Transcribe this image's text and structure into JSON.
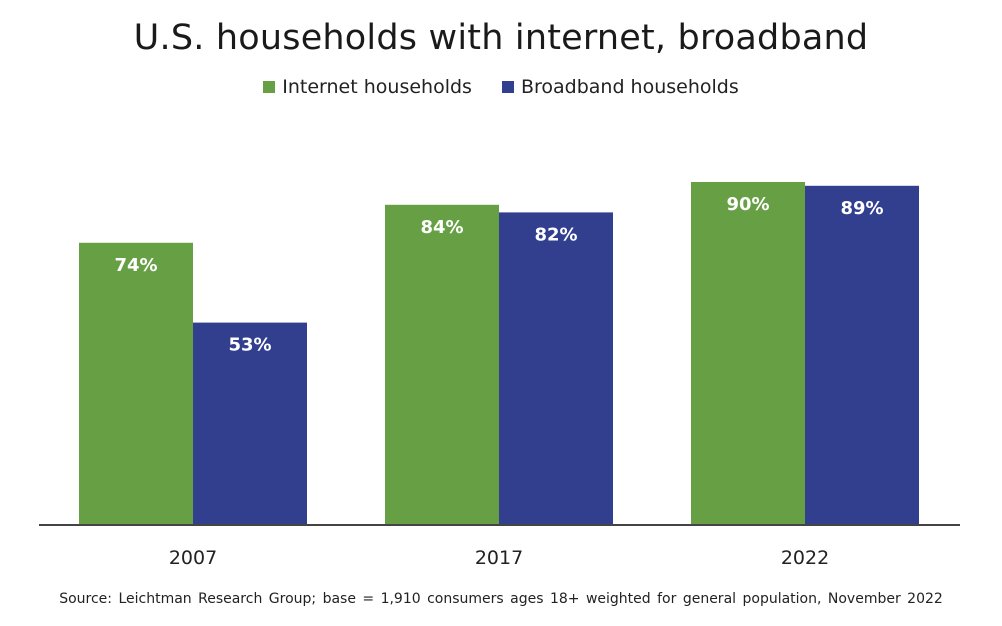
{
  "chart_data": {
    "type": "bar",
    "title": "U.S. households with internet, broadband",
    "categories": [
      "2007",
      "2017",
      "2022"
    ],
    "series": [
      {
        "name": "Internet households",
        "color": "#67a044",
        "values": [
          74,
          84,
          90
        ],
        "labels": [
          "74%",
          "84%",
          "90%"
        ]
      },
      {
        "name": "Broadband households",
        "color": "#323f8f",
        "values": [
          53,
          82,
          89
        ],
        "labels": [
          "53%",
          "82%",
          "89%"
        ]
      }
    ],
    "xlabel": "",
    "ylabel": "",
    "ylim": [
      0,
      100
    ],
    "grid": false,
    "legend": "top-center",
    "source": "Source: Leichtman Research Group; base = 1,910 consumers ages 18+ weighted for general population, November 2022"
  }
}
